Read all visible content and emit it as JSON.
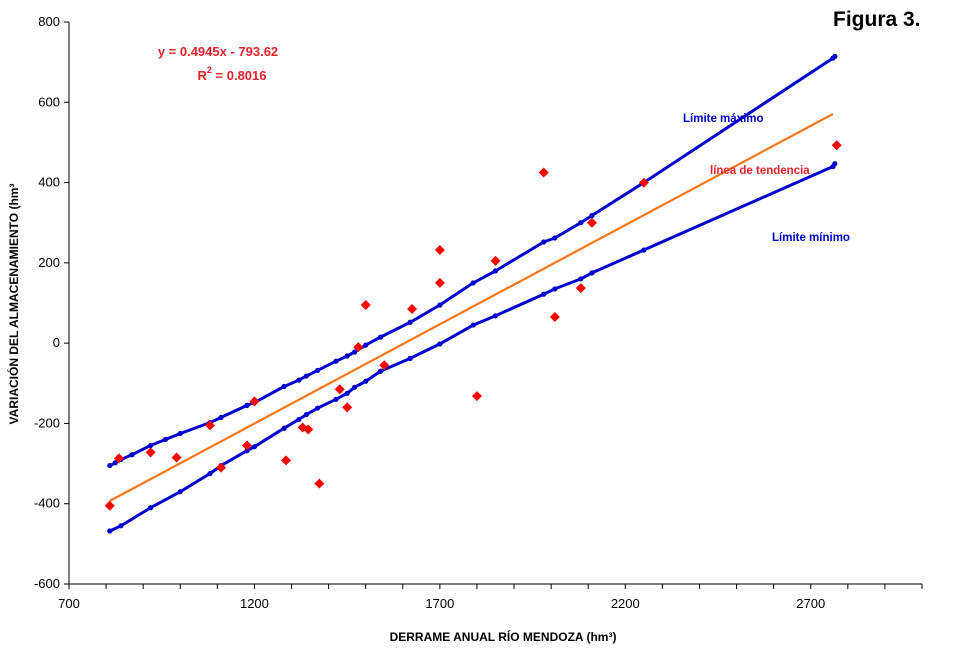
{
  "figure_title": "Figura 3.",
  "chart_data": {
    "type": "scatter",
    "xlabel": "DERRAME ANUAL RÍO MENDOZA (hm³)",
    "ylabel": "VARIACIÓN DEL ALMACENAMIENTO (hm³",
    "xlim": [
      700,
      3000
    ],
    "ylim": [
      -600,
      800
    ],
    "x_ticks": [
      700,
      1200,
      1700,
      2200,
      2700
    ],
    "y_ticks": [
      -600,
      -400,
      -200,
      0,
      200,
      400,
      600,
      800
    ],
    "x_minor_step": 100,
    "grid": false,
    "equation": "y = 0.4945x - 793.62",
    "r2_text": "R",
    "r2_sup": "2",
    "r2_value": " = 0.8016",
    "colors": {
      "observed": "#ff0000",
      "trend": "#ff7518",
      "limits": "#0000cc",
      "equation": "#e8202a",
      "trend_label": "#e8202a"
    },
    "trend_line": {
      "name": "línea de tendencia",
      "x": [
        810,
        2760
      ],
      "y": [
        -393,
        571
      ]
    },
    "series": [
      {
        "name": "Límite máximo",
        "x": [
          810,
          825,
          840,
          870,
          920,
          960,
          1000,
          1080,
          1110,
          1180,
          1200,
          1280,
          1320,
          1340,
          1370,
          1420,
          1450,
          1470,
          1500,
          1540,
          1620,
          1700,
          1790,
          1850,
          1980,
          2010,
          2080,
          2110,
          2250,
          2760,
          2765
        ],
        "y": [
          -305,
          -298,
          -290,
          -278,
          -255,
          -240,
          -225,
          -198,
          -185,
          -155,
          -148,
          -108,
          -92,
          -82,
          -68,
          -45,
          -32,
          -22,
          -5,
          15,
          52,
          95,
          150,
          180,
          252,
          262,
          300,
          318,
          400,
          710,
          714
        ]
      },
      {
        "name": "Límite mínimo",
        "x": [
          810,
          840,
          920,
          1000,
          1080,
          1110,
          1180,
          1200,
          1280,
          1320,
          1340,
          1370,
          1420,
          1450,
          1470,
          1500,
          1540,
          1620,
          1700,
          1790,
          1850,
          1980,
          2010,
          2080,
          2110,
          2250,
          2760,
          2765
        ],
        "y": [
          -468,
          -455,
          -410,
          -370,
          -325,
          -305,
          -268,
          -258,
          -212,
          -190,
          -178,
          -162,
          -140,
          -125,
          -110,
          -95,
          -70,
          -38,
          -2,
          45,
          68,
          122,
          135,
          160,
          175,
          232,
          440,
          447
        ]
      },
      {
        "name": "",
        "x": [
          810,
          835,
          920,
          990,
          1080,
          1110,
          1180,
          1200,
          1285,
          1330,
          1345,
          1375,
          1430,
          1450,
          1480,
          1500,
          1550,
          1625,
          1700,
          1700,
          1800,
          1850,
          1980,
          2010,
          2080,
          2110,
          2250,
          2770
        ],
        "y": [
          -405,
          -287,
          -272,
          -285,
          -205,
          -310,
          -255,
          -145,
          -292,
          -210,
          -215,
          -350,
          -115,
          -160,
          -10,
          95,
          -55,
          85,
          232,
          150,
          -132,
          205,
          425,
          65,
          137,
          300,
          400,
          493
        ]
      }
    ]
  }
}
